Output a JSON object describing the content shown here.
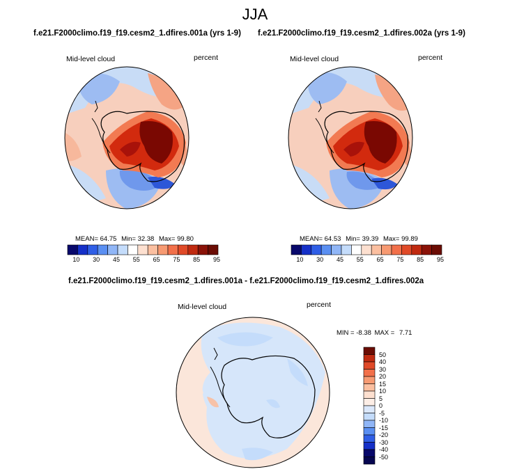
{
  "figure": {
    "season": "JJA"
  },
  "panels": [
    {
      "case_title": "f.e21.F2000climo.f19_f19.cesm2_1.dfires.001a (yrs 1-9)",
      "variable": "Mid-level cloud",
      "units": "percent",
      "stats": {
        "mean_label": "MEAN=",
        "mean": "64.75",
        "min_label": "Min=",
        "min": "32.38",
        "max_label": "Max=",
        "max": "99.80"
      }
    },
    {
      "case_title": "f.e21.F2000climo.f19_f19.cesm2_1.dfires.002a (yrs 1-9)",
      "variable": "Mid-level cloud",
      "units": "percent",
      "stats": {
        "mean_label": "MEAN=",
        "mean": "64.53",
        "min_label": "Min=",
        "min": "39.39",
        "max_label": "Max=",
        "max": "99.89"
      }
    }
  ],
  "diff_panel": {
    "case_title": "f.e21.F2000climo.f19_f19.cesm2_1.dfires.001a - f.e21.F2000climo.f19_f19.cesm2_1.dfires.002a",
    "variable": "Mid-level cloud",
    "units": "percent",
    "stats": {
      "min_label": "MIN =",
      "min": "-8.38",
      "max_label": "MAX =",
      "max": "7.71"
    }
  },
  "colorbar_abs": {
    "tick_labels": [
      "10",
      "30",
      "45",
      "55",
      "65",
      "75",
      "85",
      "95"
    ],
    "colors": [
      "#08086b",
      "#1530c8",
      "#2f5ee6",
      "#5a8ff2",
      "#90b6f7",
      "#c4dcfb",
      "#ffffff",
      "#fde0d0",
      "#fbbfa0",
      "#f79a72",
      "#f2704a",
      "#e04a28",
      "#c02a10",
      "#8a1208",
      "#6b0c04"
    ]
  },
  "colorbar_diff": {
    "tick_labels": [
      "50",
      "40",
      "30",
      "20",
      "15",
      "10",
      "5",
      "0",
      "-5",
      "-10",
      "-15",
      "-20",
      "-30",
      "-40",
      "-50"
    ],
    "colors": [
      "#6b0c04",
      "#c02a10",
      "#e04a28",
      "#f2704a",
      "#f79a72",
      "#fbbfa0",
      "#fde0d0",
      "#fdeee6",
      "#dbe8fb",
      "#c4dcfb",
      "#90b6f7",
      "#5a8ff2",
      "#2f5ee6",
      "#1530c8",
      "#08086b",
      "#060650"
    ]
  },
  "map_fill": {
    "ocean_abs_light_blue": "#c8dcf6",
    "warm": "#f5a484",
    "hot": "#d22a0e",
    "very_hot": "#7a0802",
    "blue": "#6f98ec",
    "deep_blue": "#2d57d8",
    "diff_base": "#fbe6da",
    "diff_blue": "#d6e6fa"
  }
}
